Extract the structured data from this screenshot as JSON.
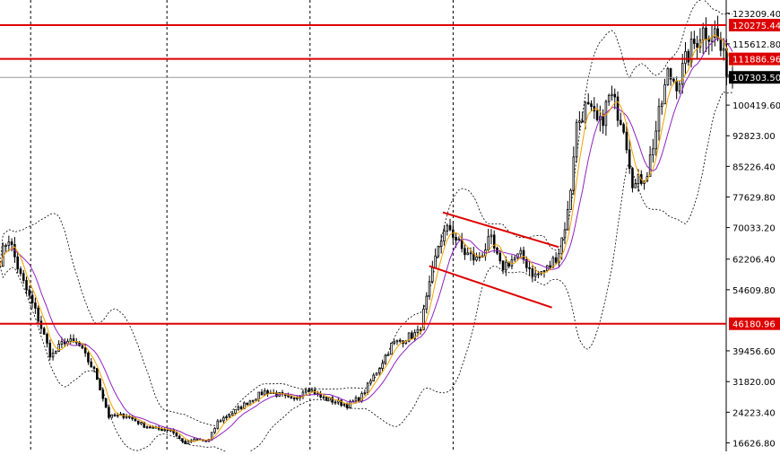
{
  "chart_data": {
    "type": "candlestick",
    "title": "",
    "xlabel": "",
    "ylabel": "",
    "ylim": [
      14500,
      126500
    ],
    "y_ticks": [
      123209.4,
      115612.8,
      100419.6,
      92823.0,
      85226.4,
      77629.8,
      70033.2,
      62206.4,
      54609.8,
      39456.6,
      31820.0,
      24223.4,
      16626.8
    ],
    "y_tick_labels": [
      "123209.40",
      "115612.80",
      "100419.60",
      "92823.00",
      "85226.40",
      "77629.80",
      "70033.20",
      "62206.40",
      "54609.80",
      "39456.60",
      "31820.00",
      "24223.40",
      "16626.80"
    ],
    "horizontal_levels": [
      {
        "value": 120275.44,
        "label": "120275.44",
        "color": "#dd0000"
      },
      {
        "value": 111886.96,
        "label": "111886.96",
        "color": "#dd0000"
      },
      {
        "value": 46180.96,
        "label": "46180.96",
        "color": "#dd0000"
      }
    ],
    "current_price": {
      "value": 107303.5,
      "label": "107303.50",
      "color": "#000000"
    },
    "channel_lines": [
      {
        "from": [
          0.65,
          73800
        ],
        "to": [
          0.82,
          65200
        ],
        "color": "#dd0000"
      },
      {
        "from": [
          0.63,
          60500
        ],
        "to": [
          0.81,
          50200
        ],
        "color": "#dd0000"
      }
    ],
    "vertical_grid": [
      0.045,
      0.245,
      0.455,
      0.665
    ],
    "grid": "vertical dashed",
    "indicators": [
      "bollinger bands (dotted)",
      "fast moving average (orange)",
      "slow moving average (purple)"
    ],
    "colors": {
      "bull": "#ffffff",
      "bear": "#000000",
      "fast_ma": "#f0a000",
      "slow_ma": "#9020c0",
      "bands": "#000000",
      "level": "#dd0000"
    },
    "waypoints": [
      [
        0.0,
        62000
      ],
      [
        0.012,
        68000
      ],
      [
        0.03,
        58000
      ],
      [
        0.055,
        48000
      ],
      [
        0.075,
        38000
      ],
      [
        0.095,
        42000
      ],
      [
        0.115,
        41000
      ],
      [
        0.14,
        34000
      ],
      [
        0.16,
        23000
      ],
      [
        0.185,
        23500
      ],
      [
        0.21,
        21000
      ],
      [
        0.23,
        20000
      ],
      [
        0.25,
        20000
      ],
      [
        0.27,
        16500
      ],
      [
        0.29,
        17500
      ],
      [
        0.305,
        16800
      ],
      [
        0.32,
        22000
      ],
      [
        0.345,
        24500
      ],
      [
        0.37,
        27500
      ],
      [
        0.39,
        29500
      ],
      [
        0.41,
        28500
      ],
      [
        0.43,
        27000
      ],
      [
        0.45,
        30500
      ],
      [
        0.47,
        28000
      ],
      [
        0.49,
        27000
      ],
      [
        0.51,
        26000
      ],
      [
        0.53,
        28000
      ],
      [
        0.555,
        35000
      ],
      [
        0.575,
        41000
      ],
      [
        0.6,
        43000
      ],
      [
        0.615,
        44000
      ],
      [
        0.63,
        55000
      ],
      [
        0.645,
        67000
      ],
      [
        0.66,
        70000
      ],
      [
        0.68,
        64000
      ],
      [
        0.7,
        62000
      ],
      [
        0.72,
        67000
      ],
      [
        0.735,
        60000
      ],
      [
        0.75,
        62000
      ],
      [
        0.765,
        63000
      ],
      [
        0.785,
        58000
      ],
      [
        0.805,
        60000
      ],
      [
        0.82,
        64000
      ],
      [
        0.835,
        75000
      ],
      [
        0.845,
        95000
      ],
      [
        0.86,
        100000
      ],
      [
        0.88,
        95000
      ],
      [
        0.895,
        103000
      ],
      [
        0.915,
        96000
      ],
      [
        0.93,
        80000
      ],
      [
        0.95,
        84000
      ],
      [
        0.965,
        96000
      ],
      [
        0.98,
        108000
      ],
      [
        0.995,
        106000
      ],
      [
        1.01,
        113000
      ],
      [
        1.03,
        119000
      ],
      [
        1.05,
        118500
      ],
      [
        1.065,
        110000
      ],
      [
        1.075,
        107300
      ]
    ]
  }
}
